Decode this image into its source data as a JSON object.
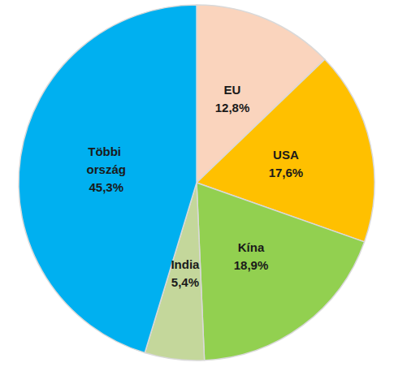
{
  "chart_data": {
    "type": "pie",
    "categories": [
      "EU",
      "USA",
      "Kína",
      "India",
      "Többi ország"
    ],
    "values": [
      12.8,
      17.6,
      18.9,
      5.4,
      45.3
    ],
    "value_labels": [
      "12,8%",
      "17,6%",
      "18,9%",
      "5,4%",
      "45,3%"
    ],
    "colors": [
      "#fad4bd",
      "#ffc000",
      "#92d050",
      "#c4d79b",
      "#00b0f0"
    ],
    "data_labels": true
  }
}
